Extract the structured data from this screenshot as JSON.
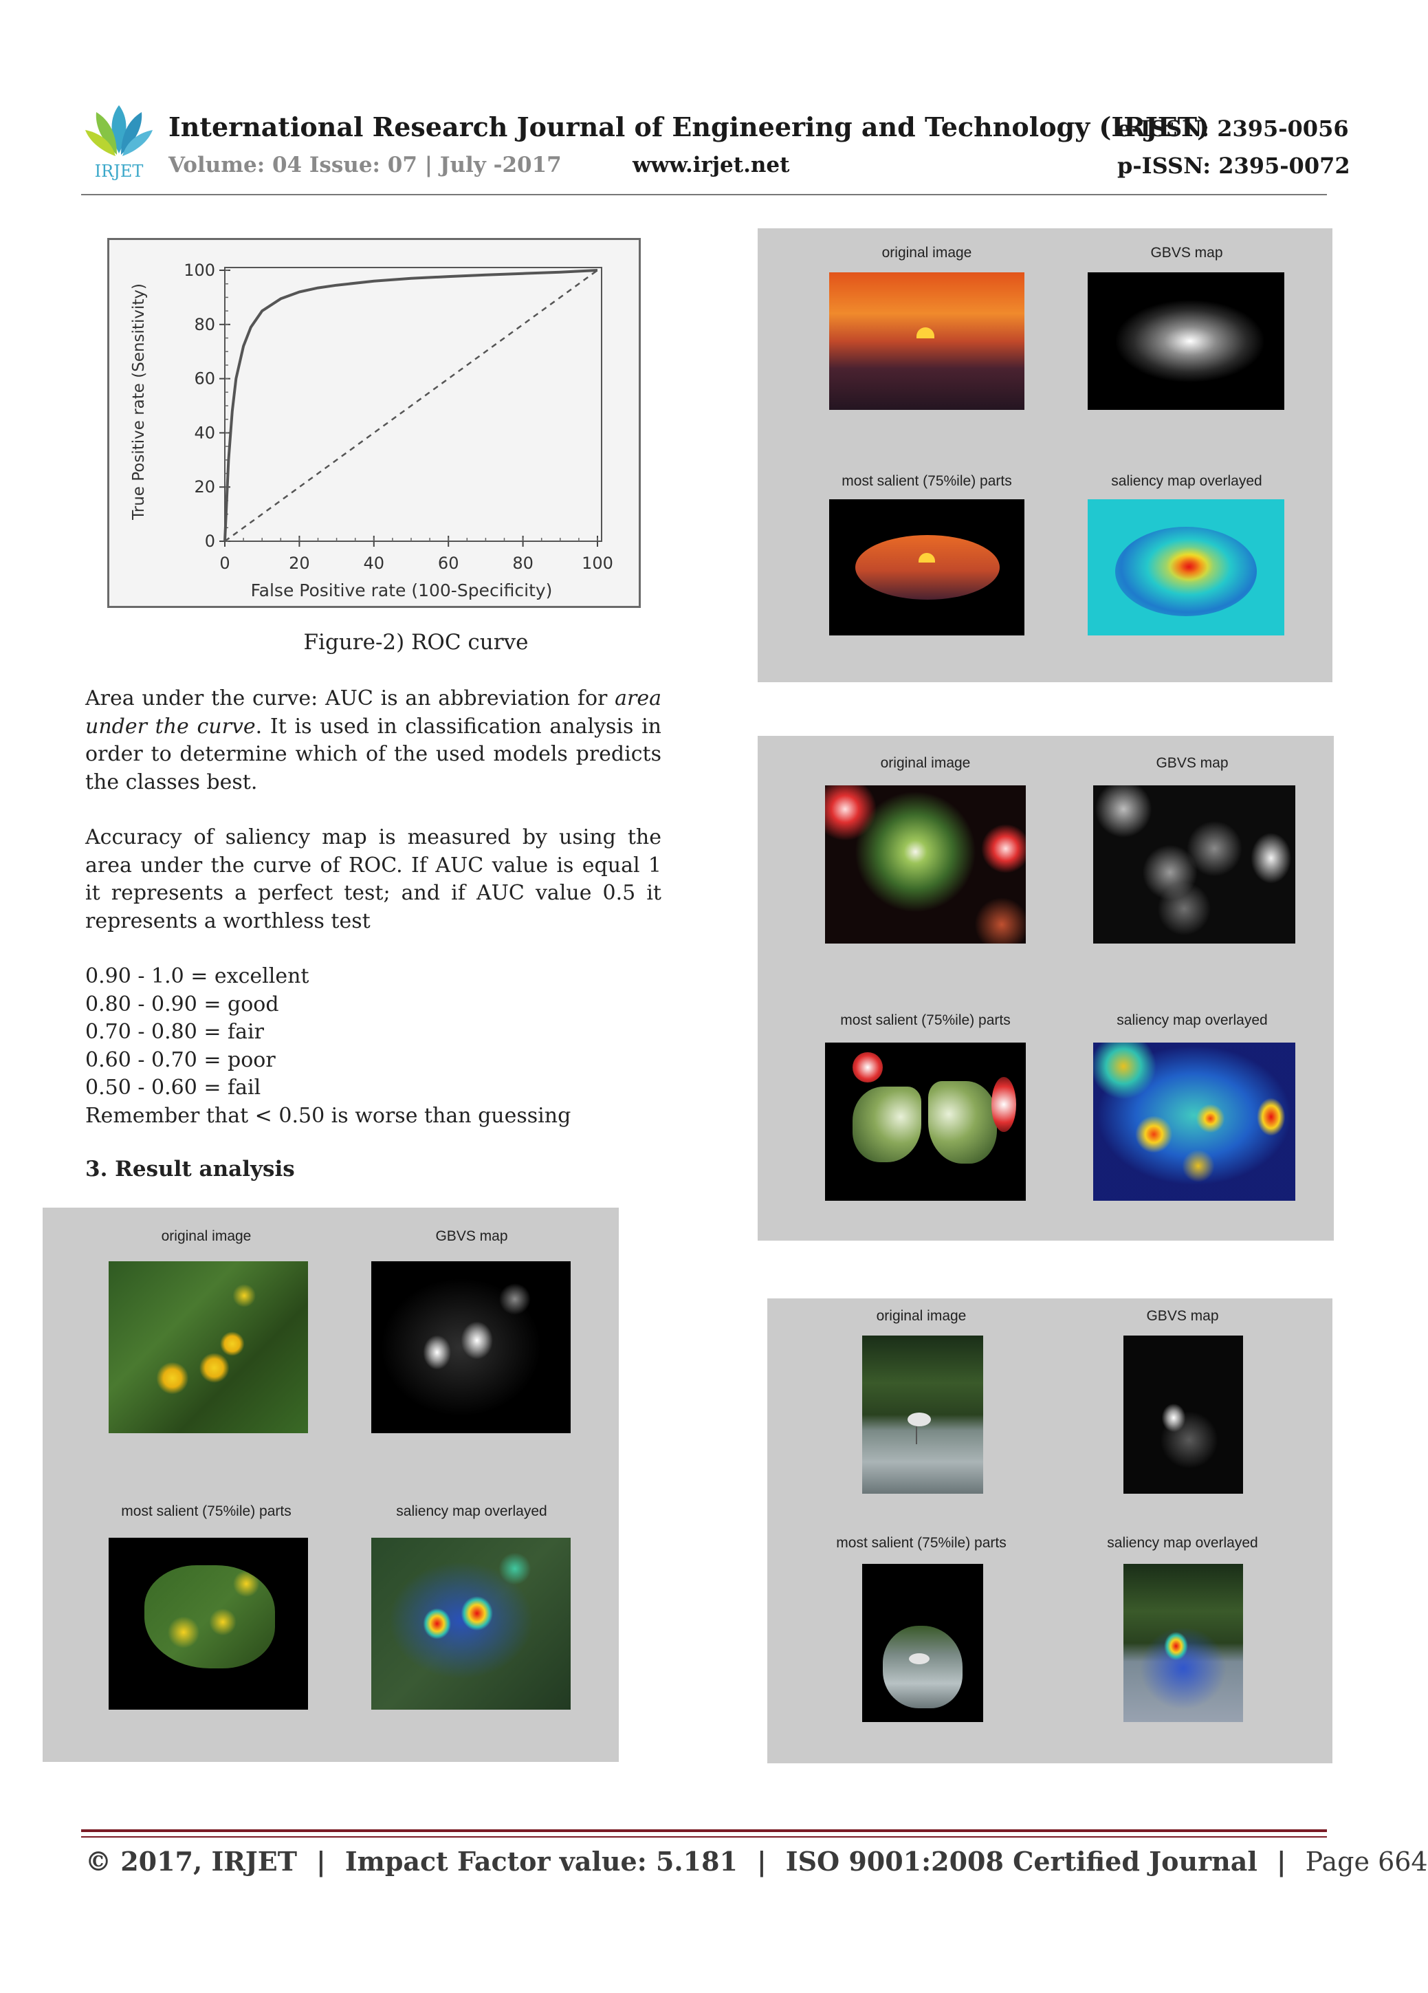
{
  "header": {
    "logo_text": "IRJET",
    "journal_title": "International Research Journal of Engineering and Technology (IRJET)",
    "eissn": "e-ISSN: 2395-0056",
    "volume": "Volume: 04 Issue: 07 | July -2017",
    "website": "www.irjet.net",
    "pissn": "p-ISSN: 2395-0072"
  },
  "figure2": {
    "caption": "Figure-2) ROC curve"
  },
  "chart_data": {
    "type": "line",
    "title": "",
    "xlabel": "False Positive rate (100-Specificity)",
    "ylabel": "True Positive rate (Sensitivity)",
    "xlim": [
      0,
      100
    ],
    "ylim": [
      0,
      100
    ],
    "xticks": [
      0,
      20,
      40,
      60,
      80,
      100
    ],
    "yticks": [
      0,
      20,
      40,
      60,
      80,
      100
    ],
    "grid": false,
    "series": [
      {
        "style": "solid",
        "x": [
          0,
          1,
          2,
          3,
          5,
          7,
          10,
          15,
          20,
          25,
          30,
          40,
          50,
          60,
          70,
          80,
          90,
          100
        ],
        "y": [
          0,
          30,
          48,
          60,
          72,
          79,
          85,
          89.5,
          92,
          93.5,
          94.5,
          96,
          97,
          97.7,
          98.3,
          98.8,
          99.3,
          100
        ]
      },
      {
        "style": "dashed",
        "x": [
          0,
          100
        ],
        "y": [
          0,
          100
        ]
      }
    ]
  },
  "body": {
    "auc_lead": "Area under the curve:  AUC is an abbreviation for ",
    "auc_italic": "area under the curve",
    "auc_rest": ". It is used in classification analysis in order to determine which of the used models predicts the classes best.",
    "accuracy": "Accuracy of saliency map is measured by using the area under the curve of ROC. If AUC value is equal 1 it represents a perfect test; and if AUC value 0.5 it represents a worthless test",
    "auc_scale": [
      "0.90 - 1.0 = excellent",
      "0.80 - 0.90 = good",
      "0.70 - 0.80 = fair",
      "0.60 - 0.70 = poor",
      "0.50 - 0.60 = fail",
      "Remember that < 0.50 is worse than guessing"
    ],
    "section_heading": "3. Result analysis"
  },
  "panels": {
    "labels": {
      "original": "original image",
      "gbvs": "GBVS map",
      "salient": "most salient (75%ile) parts",
      "overlay": "saliency map overlayed"
    }
  },
  "footer": {
    "copyright": "© 2017, IRJET",
    "impact": "Impact Factor value: 5.181",
    "iso": "ISO 9001:2008 Certified Journal",
    "page": "Page 664"
  }
}
